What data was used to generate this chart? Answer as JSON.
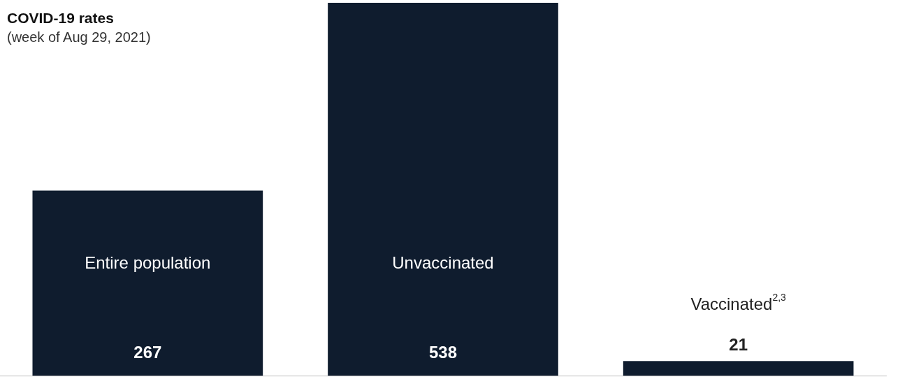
{
  "chart_data": {
    "type": "bar",
    "title": "COVID-19 rates",
    "subtitle": "(week of Aug 29, 2021)",
    "categories": [
      "Entire population",
      "Unvaccinated",
      "Vaccinated$^{2,3}$"
    ],
    "values": [
      267,
      538,
      21
    ],
    "color": "#0f1c2e",
    "data_labels": true,
    "grid": false,
    "legend": false
  }
}
